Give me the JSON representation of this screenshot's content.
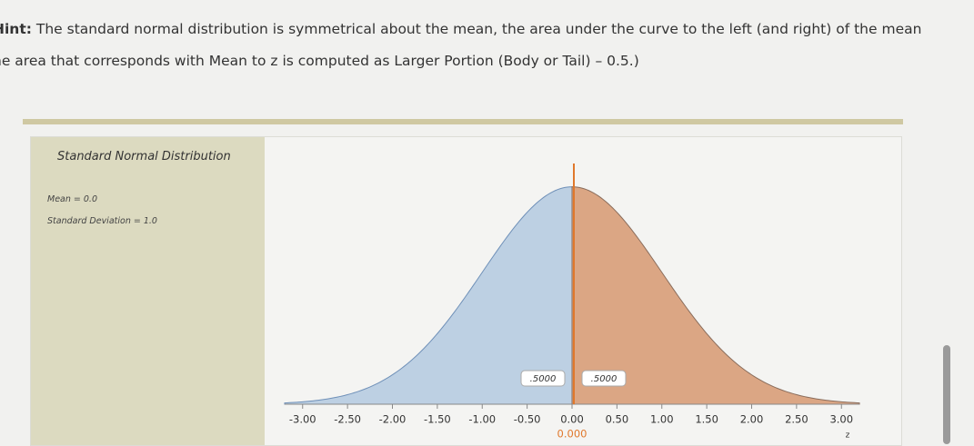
{
  "hint": {
    "lead": "Hint:",
    "line1": "The standard normal distribution is symmetrical about the mean, the area under the curve to the left (and right) of the mean",
    "line2": "he area that corresponds with Mean to z is computed as Larger Portion (Body or Tail) – 0.5.)"
  },
  "panel": {
    "title": "Standard Normal Distribution",
    "mean_label": "Mean = 0.0",
    "sd_label": "Standard Deviation = 1.0"
  },
  "chart_data": {
    "type": "normal-area",
    "mean": 0,
    "sd": 1,
    "z": {
      "value": 0,
      "label": "0.000"
    },
    "xlabel": "z",
    "areas": [
      {
        "value": 0.5,
        "label": ".5000",
        "color": "#bdd0e3",
        "stroke": "#6f90b8"
      },
      {
        "value": 0.5,
        "label": ".5000",
        "color": "#dba684",
        "stroke": "#8a6d5c"
      }
    ],
    "marker_color": "#e0782c",
    "xlim": [
      -3.2,
      3.2
    ],
    "ylim": [
      0,
      0.4
    ],
    "xticks": [
      {
        "value": -3,
        "label": "-3.00"
      },
      {
        "value": -2.5,
        "label": "-2.50"
      },
      {
        "value": -2,
        "label": "-2.00"
      },
      {
        "value": -1.5,
        "label": "-1.50"
      },
      {
        "value": -1,
        "label": "-1.00"
      },
      {
        "value": -0.5,
        "label": "-0.50"
      },
      {
        "value": 0,
        "label": "0.00"
      },
      {
        "value": 0.5,
        "label": "0.50"
      },
      {
        "value": 1,
        "label": "1.00"
      },
      {
        "value": 1.5,
        "label": "1.50"
      },
      {
        "value": 2,
        "label": "2.00"
      },
      {
        "value": 2.5,
        "label": "2.50"
      },
      {
        "value": 3,
        "label": "3.00"
      }
    ]
  }
}
